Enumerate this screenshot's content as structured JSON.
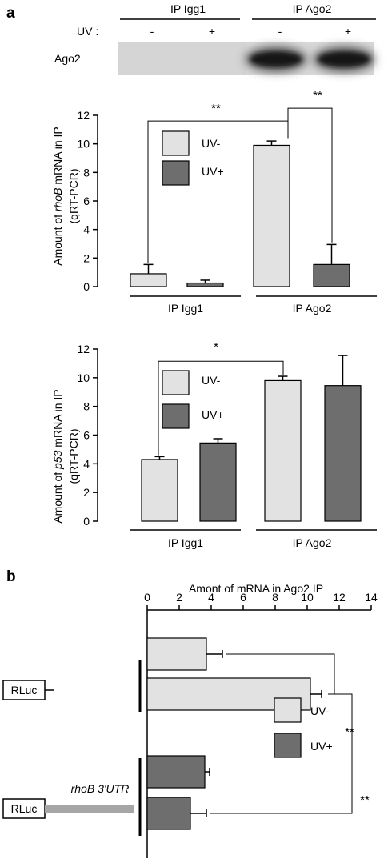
{
  "panel_a_label": "a",
  "panel_b_label": "b",
  "blot": {
    "groups": [
      "IP Igg1",
      "IP Ago2"
    ],
    "uv_label": "UV :",
    "uv_marks": [
      "-",
      "+",
      "-",
      "+"
    ],
    "protein_label": "Ago2"
  },
  "colors": {
    "uv_minus": "#e2e2e2",
    "uv_plus": "#6e6e6e",
    "axis": "#000000"
  },
  "chart_data": [
    {
      "type": "bar",
      "ylabel_prefix": "Amount of ",
      "ylabel_gene": "rhoB",
      "ylabel_suffix": " mRNA in IP",
      "ylabel_line2": "(qRT-PCR)",
      "ylim": [
        0,
        12
      ],
      "yticks": [
        "0",
        "2",
        "4",
        "6",
        "8",
        "10",
        "12"
      ],
      "groups": [
        "IP Igg1",
        "IP Ago2"
      ],
      "legend": [
        "UV-",
        "UV+"
      ],
      "series": [
        {
          "name": "UV-",
          "values": [
            0.9,
            9.9
          ],
          "errors": [
            0.65,
            0.3
          ]
        },
        {
          "name": "UV+",
          "values": [
            0.25,
            1.55
          ],
          "errors": [
            0.2,
            1.4
          ]
        }
      ],
      "significance": [
        "**",
        "**"
      ]
    },
    {
      "type": "bar",
      "ylabel_prefix": "Amount of ",
      "ylabel_gene": "p53",
      "ylabel_suffix": " mRNA in IP",
      "ylabel_line2": "(qRT-PCR)",
      "ylim": [
        0,
        12
      ],
      "yticks": [
        "0",
        "2",
        "4",
        "6",
        "8",
        "10",
        "12"
      ],
      "groups": [
        "IP Igg1",
        "IP Ago2"
      ],
      "legend": [
        "UV-",
        "UV+"
      ],
      "series": [
        {
          "name": "UV-",
          "values": [
            4.3,
            9.8
          ],
          "errors": [
            0.2,
            0.3
          ]
        },
        {
          "name": "UV+",
          "values": [
            5.45,
            9.45
          ],
          "errors": [
            0.3,
            2.1
          ]
        }
      ],
      "significance": [
        "*"
      ]
    },
    {
      "type": "bar",
      "orientation": "horizontal",
      "xlabel": "Amont of mRNA in Ago2 IP",
      "xlim": [
        0,
        14
      ],
      "xticks": [
        "0",
        "2",
        "4",
        "6",
        "8",
        "10",
        "12",
        "14"
      ],
      "constructs": [
        {
          "label": "RLuc",
          "utr": ""
        },
        {
          "label": "RLuc",
          "utr": "rhoB 3'UTR"
        }
      ],
      "legend": [
        "UV-",
        "UV+"
      ],
      "series": [
        {
          "name": "UV-",
          "values": [
            3.7,
            10.2
          ],
          "errors": [
            1.0,
            0.7
          ]
        },
        {
          "name": "UV+",
          "values": [
            3.6,
            2.7
          ],
          "errors": [
            0.3,
            1.0
          ]
        }
      ],
      "significance": [
        "**",
        "**"
      ]
    }
  ]
}
